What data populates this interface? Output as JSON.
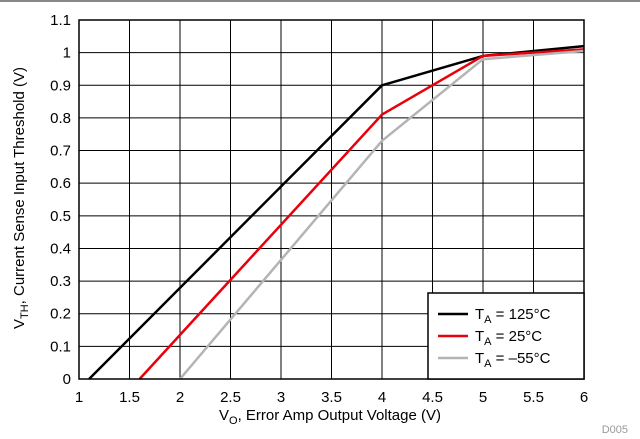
{
  "chart_data": {
    "type": "line",
    "xlabel": {
      "main": "V",
      "sub": "O",
      "rest": ", Error Amp Output Voltage (V)"
    },
    "ylabel": {
      "main": "V",
      "sub": "TH",
      "rest": ", Current Sense Input Threshold (V)"
    },
    "xlim": [
      1,
      6
    ],
    "ylim": [
      0,
      1.1
    ],
    "x_ticks": [
      "1",
      "1.5",
      "2",
      "2.5",
      "3",
      "3.5",
      "4",
      "4.5",
      "5",
      "5.5",
      "6"
    ],
    "y_ticks": [
      "0",
      "0.1",
      "0.2",
      "0.3",
      "0.4",
      "0.5",
      "0.6",
      "0.7",
      "0.8",
      "0.9",
      "1",
      "1.1"
    ],
    "grid": true,
    "legend_position": "bottom-right",
    "series": [
      {
        "name": "125°C",
        "label_main": "T",
        "label_sub": "A",
        "label_rest": " = 125°C",
        "color": "#000000",
        "points": [
          [
            1.1,
            0
          ],
          [
            4.0,
            0.9
          ],
          [
            5.0,
            0.99
          ],
          [
            6.0,
            1.02
          ]
        ]
      },
      {
        "name": "25°C",
        "label_main": "T",
        "label_sub": "A",
        "label_rest": " = 25°C",
        "color": "#e8000b",
        "points": [
          [
            1.6,
            0
          ],
          [
            4.0,
            0.81
          ],
          [
            5.0,
            0.99
          ],
          [
            6.0,
            1.01
          ]
        ]
      },
      {
        "name": "–55°C",
        "label_main": "T",
        "label_sub": "A",
        "label_rest": " = –55°C",
        "color": "#b4b4b4",
        "points": [
          [
            2.0,
            0
          ],
          [
            4.0,
            0.73
          ],
          [
            5.0,
            0.98
          ],
          [
            6.0,
            1.005
          ]
        ]
      }
    ],
    "footnote": "D005"
  }
}
